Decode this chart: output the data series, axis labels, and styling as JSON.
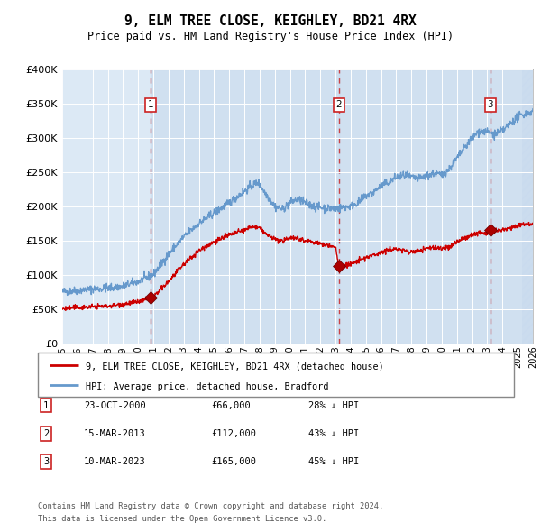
{
  "title": "9, ELM TREE CLOSE, KEIGHLEY, BD21 4RX",
  "subtitle": "Price paid vs. HM Land Registry's House Price Index (HPI)",
  "x_start_year": 1995,
  "x_end_year": 2026,
  "y_min": 0,
  "y_max": 400000,
  "y_ticks": [
    0,
    50000,
    100000,
    150000,
    200000,
    250000,
    300000,
    350000,
    400000
  ],
  "y_tick_labels": [
    "£0",
    "£50K",
    "£100K",
    "£150K",
    "£200K",
    "£250K",
    "£300K",
    "£350K",
    "£400K"
  ],
  "sale_dates": [
    "23-OCT-2000",
    "15-MAR-2013",
    "10-MAR-2023"
  ],
  "sale_prices": [
    66000,
    112000,
    165000
  ],
  "sale_pct_below": [
    "28%",
    "43%",
    "45%"
  ],
  "sale_years_decimal": [
    2000.81,
    2013.21,
    2023.19
  ],
  "legend_line1": "9, ELM TREE CLOSE, KEIGHLEY, BD21 4RX (detached house)",
  "legend_line2": "HPI: Average price, detached house, Bradford",
  "footer1": "Contains HM Land Registry data © Crown copyright and database right 2024.",
  "footer2": "This data is licensed under the Open Government Licence v3.0.",
  "bg_color": "#dce9f5",
  "ownership_bg": "#c8daee",
  "grid_color": "#ffffff",
  "red_line_color": "#cc0000",
  "blue_line_color": "#6699cc",
  "dashed_line_color": "#cc3333"
}
